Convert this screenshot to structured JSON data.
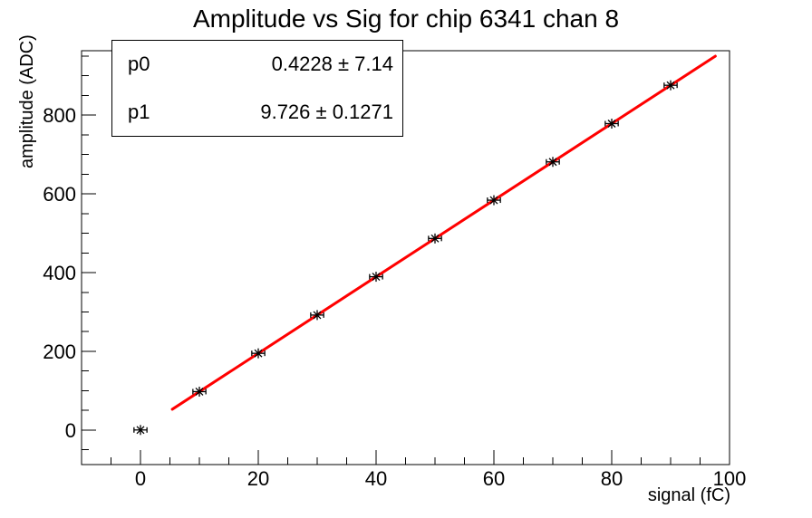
{
  "window": {
    "background_color": "#ffffff",
    "foreground_color": "#000000"
  },
  "chart_data": {
    "type": "scatter",
    "title": "Amplitude vs Sig for chip 6341 chan 8",
    "xlabel": "signal (fC)",
    "ylabel": "amplitude (ADC)",
    "grid": false,
    "legend": "none",
    "x_axis": {
      "lim": [
        -10,
        100
      ],
      "major_ticks": [
        0,
        20,
        40,
        60,
        80,
        100
      ],
      "minor_step": 5
    },
    "y_axis": {
      "lim": [
        -87.5,
        963.5
      ],
      "major_ticks": [
        0,
        200,
        400,
        600,
        800
      ],
      "minor_step": 50
    },
    "points": {
      "marker": "asterisk",
      "color": "#000000",
      "x": [
        0,
        10,
        20,
        30,
        40,
        50,
        60,
        70,
        80,
        90
      ],
      "y": [
        0.4,
        97.7,
        195.0,
        292.2,
        389.5,
        486.7,
        583.9,
        681.2,
        778.4,
        875.7
      ],
      "xerr": 1.1
    },
    "fit": {
      "model": "p0 + p1*x",
      "p0": 0.4228,
      "p1": 9.726,
      "x_range": [
        5.4,
        97.6
      ],
      "color": "#ff0000",
      "line_width": 3
    },
    "fit_box": {
      "rows": [
        {
          "name": "p0",
          "value": "0.4228 ± 7.14"
        },
        {
          "name": "p1",
          "value": "9.726 ± 0.1271"
        }
      ]
    }
  }
}
